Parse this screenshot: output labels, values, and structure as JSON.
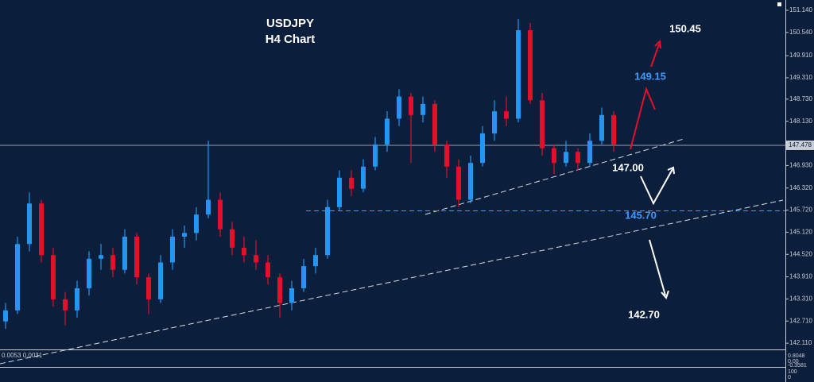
{
  "chart_data": {
    "type": "candlestick",
    "title": "USDJPY",
    "subtitle": "H4 Chart",
    "up_color": "#2196f3",
    "down_color": "#e3102c",
    "open": [
      142.7,
      143.0,
      144.8,
      145.9,
      144.5,
      143.3,
      143.0,
      143.6,
      144.4,
      144.5,
      144.1,
      145.0,
      143.9,
      143.3,
      144.3,
      145.0,
      145.1,
      145.6,
      146.0,
      145.2,
      144.7,
      144.5,
      144.3,
      143.9,
      143.2,
      143.6,
      144.2,
      144.5,
      145.8,
      146.6,
      146.3,
      146.9,
      147.5,
      148.2,
      148.8,
      148.3,
      148.6,
      147.5,
      146.9,
      146.0,
      147.0,
      147.8,
      148.4,
      148.2,
      150.6,
      148.7,
      147.4,
      147.0,
      147.3,
      147.0,
      147.6,
      148.3
    ],
    "high": [
      143.2,
      145.0,
      146.2,
      146.0,
      144.7,
      143.5,
      143.8,
      144.6,
      144.8,
      144.7,
      145.2,
      145.1,
      144.0,
      144.5,
      145.2,
      145.3,
      145.8,
      147.6,
      146.2,
      145.4,
      145.0,
      144.9,
      144.5,
      144.0,
      143.8,
      144.4,
      144.7,
      146.0,
      146.8,
      146.8,
      147.1,
      147.7,
      148.4,
      149.0,
      148.9,
      148.8,
      148.7,
      147.6,
      147.1,
      147.2,
      148.0,
      148.7,
      148.8,
      150.9,
      150.8,
      148.9,
      147.5,
      147.6,
      147.4,
      147.8,
      148.5,
      148.4
    ],
    "low": [
      142.5,
      142.9,
      144.6,
      144.3,
      143.1,
      142.6,
      142.8,
      143.4,
      144.1,
      143.9,
      144.0,
      143.7,
      142.9,
      143.2,
      144.1,
      144.7,
      144.9,
      145.5,
      145.0,
      144.5,
      144.3,
      144.1,
      143.7,
      142.8,
      143.0,
      143.5,
      144.0,
      144.4,
      145.7,
      146.1,
      146.2,
      146.8,
      147.3,
      148.0,
      147.0,
      148.1,
      147.3,
      146.6,
      145.8,
      145.9,
      146.9,
      147.6,
      148.0,
      148.1,
      148.6,
      147.2,
      146.7,
      146.9,
      146.8,
      146.9,
      147.5,
      147.3
    ],
    "close": [
      143.0,
      144.8,
      145.9,
      144.5,
      143.3,
      143.0,
      143.6,
      144.4,
      144.5,
      144.1,
      145.0,
      143.9,
      143.3,
      144.3,
      145.0,
      145.1,
      145.6,
      146.0,
      145.2,
      144.7,
      144.5,
      144.3,
      143.9,
      143.2,
      143.6,
      144.2,
      144.5,
      145.8,
      146.6,
      146.3,
      146.9,
      147.5,
      148.2,
      148.8,
      148.3,
      148.6,
      147.5,
      146.9,
      146.0,
      147.0,
      147.8,
      148.4,
      148.2,
      150.6,
      148.7,
      147.4,
      147.0,
      147.3,
      147.0,
      147.6,
      148.3,
      147.5
    ],
    "ylim": [
      141.94,
      151.42
    ],
    "yticks": [
      {
        "value": 151.14,
        "label": "151.140"
      },
      {
        "value": 150.54,
        "label": "150.540"
      },
      {
        "value": 149.91,
        "label": "149.910"
      },
      {
        "value": 149.31,
        "label": "149.310"
      },
      {
        "value": 148.73,
        "label": "148.730"
      },
      {
        "value": 148.13,
        "label": "148.130"
      },
      {
        "value": 146.93,
        "label": "146.930"
      },
      {
        "value": 146.32,
        "label": "146.320"
      },
      {
        "value": 145.72,
        "label": "145.720"
      },
      {
        "value": 145.12,
        "label": "145.120"
      },
      {
        "value": 144.52,
        "label": "144.520"
      },
      {
        "value": 143.91,
        "label": "143.910"
      },
      {
        "value": 143.31,
        "label": "143.310"
      },
      {
        "value": 142.71,
        "label": "142.710"
      },
      {
        "value": 142.11,
        "label": "142.110"
      }
    ],
    "current_price": {
      "value": 147.478,
      "label": "147.478"
    },
    "annotations": [
      {
        "value": 150.45,
        "label": "150.45",
        "color": "#ffffff"
      },
      {
        "value": 149.15,
        "label": "149.15",
        "color": "#3d9bff"
      },
      {
        "value": 147.0,
        "label": "147.00",
        "color": "#ffffff"
      },
      {
        "value": 145.7,
        "label": "145.70",
        "color": "#3d9bff"
      },
      {
        "value": 142.7,
        "label": "142.70",
        "color": "#ffffff"
      }
    ],
    "indicators": {
      "macd_label": "0.0053 0.0031",
      "macd_axis": [
        "0.8048",
        "0.00",
        "-0.3581"
      ],
      "rsi_axis": [
        "100",
        "0"
      ]
    }
  }
}
